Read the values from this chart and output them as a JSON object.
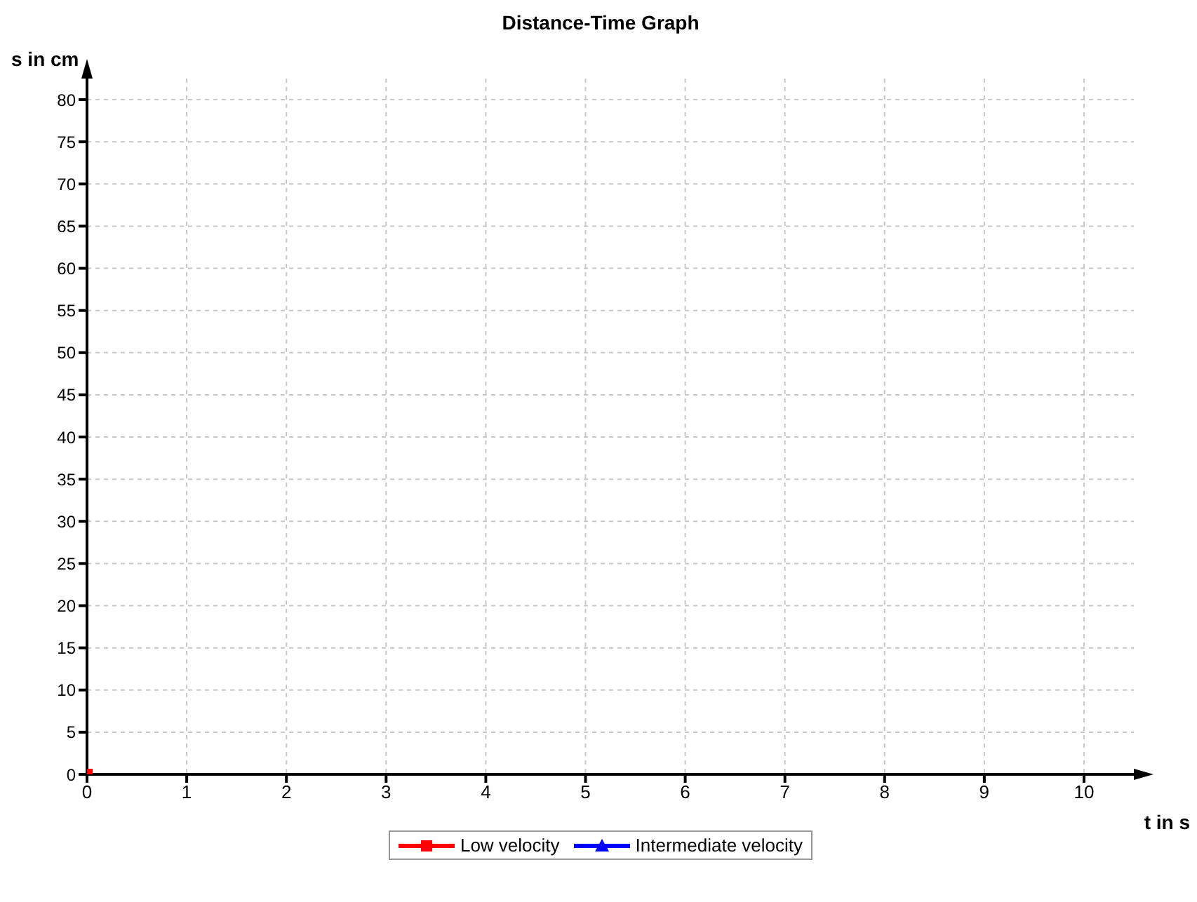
{
  "chart_data": {
    "type": "line",
    "title": "Distance-Time Graph",
    "xlabel": "t in s",
    "ylabel": "s in cm",
    "xlim": [
      0,
      10.5
    ],
    "ylim": [
      0,
      82.5
    ],
    "xticks": [
      0,
      1,
      2,
      3,
      4,
      5,
      6,
      7,
      8,
      9,
      10
    ],
    "yticks": [
      0,
      5,
      10,
      15,
      20,
      25,
      30,
      35,
      40,
      45,
      50,
      55,
      60,
      65,
      70,
      75,
      80
    ],
    "grid": true,
    "legend": "bottom",
    "series": [
      {
        "name": "Low velocity",
        "color": "#ff0000",
        "x": [
          0
        ],
        "values": [
          0
        ],
        "marker": "square"
      },
      {
        "name": "Intermediate velocity",
        "color": "#0000ff",
        "marker": "triangle"
      }
    ]
  }
}
